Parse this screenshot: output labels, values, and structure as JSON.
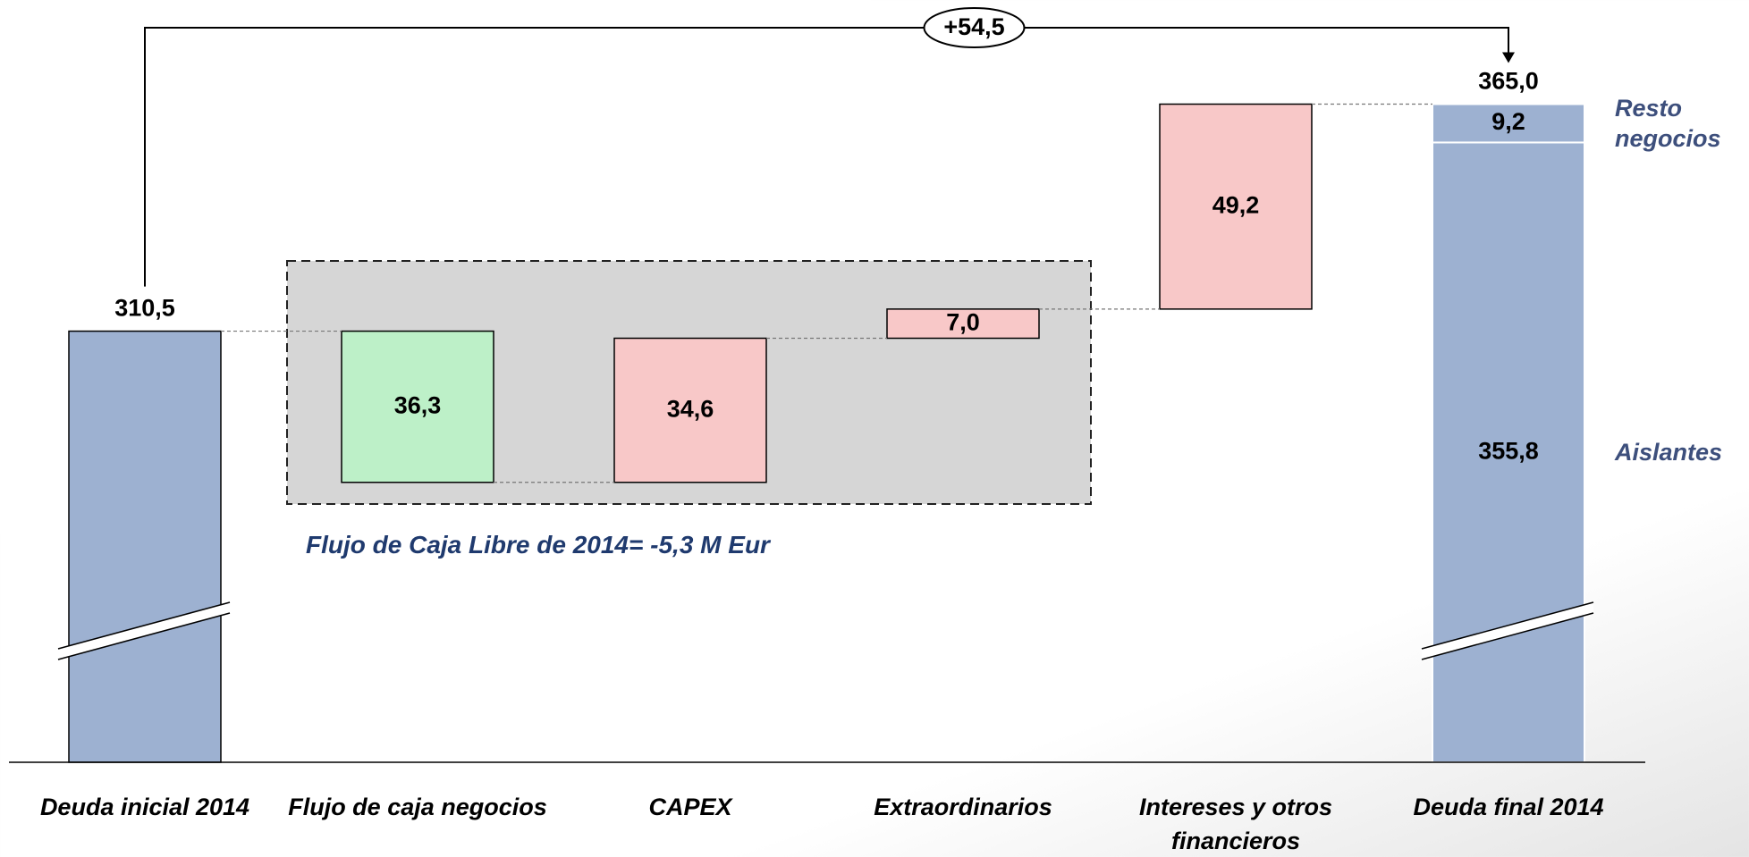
{
  "chart_data": {
    "type": "waterfall",
    "categories": [
      "Deuda inicial 2014",
      "Flujo de caja negocios",
      "CAPEX",
      "Extraordinarios",
      "Intereses y otros financieros",
      "Deuda final 2014"
    ],
    "kinds": [
      "total",
      "decrease",
      "increase",
      "increase",
      "increase",
      "total"
    ],
    "values": [
      310.5,
      36.3,
      34.6,
      7.0,
      49.2,
      365.0
    ],
    "value_labels": [
      "310,5",
      "36,3",
      "34,6",
      "7,0",
      "49,2",
      "365,0"
    ],
    "colors": {
      "total": "#9db1d1",
      "decrease": "#bdf0c8",
      "increase": "#f8c8c8"
    },
    "segments": [
      {
        "name": "Aislantes",
        "value": 355.8,
        "label": "355,8"
      },
      {
        "name": "Resto negocios",
        "value": 9.2,
        "label": "9,2"
      }
    ],
    "difference": {
      "value": 54.5,
      "label": "+54,5"
    },
    "note": "Flujo de Caja Libre de 2014= -5,3 M Eur",
    "ylim": [
      207,
      390
    ]
  }
}
